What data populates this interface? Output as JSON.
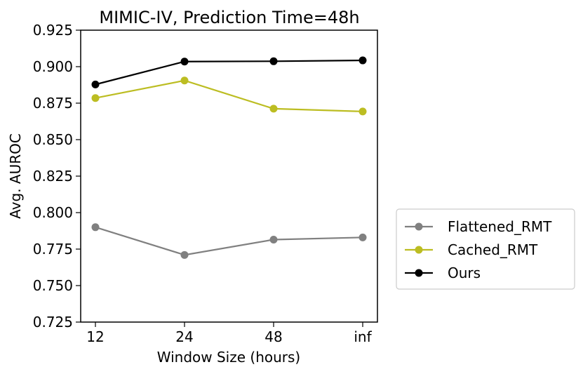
{
  "chart_data": {
    "type": "line",
    "title": "MIMIC-IV, Prediction Time=48h",
    "xlabel": "Window Size (hours)",
    "ylabel": "Avg. AUROC",
    "categories": [
      "12",
      "24",
      "48",
      "inf"
    ],
    "ylim": [
      0.725,
      0.925
    ],
    "yticks": [
      "0.725",
      "0.750",
      "0.775",
      "0.800",
      "0.825",
      "0.850",
      "0.875",
      "0.900",
      "0.925"
    ],
    "grid": false,
    "legend_position": "outside-right",
    "series": [
      {
        "name": "Flattened_RMT",
        "color": "#808080",
        "values": [
          0.79,
          0.771,
          0.7815,
          0.783
        ]
      },
      {
        "name": "Cached_RMT",
        "color": "#bcbd22",
        "values": [
          0.8785,
          0.8905,
          0.8712,
          0.8693
        ]
      },
      {
        "name": "Ours",
        "color": "#000000",
        "values": [
          0.8878,
          0.9035,
          0.9037,
          0.9043
        ]
      }
    ]
  }
}
